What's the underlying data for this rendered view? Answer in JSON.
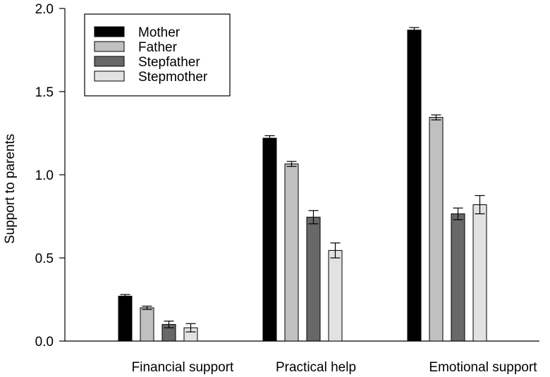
{
  "chart_data": {
    "type": "bar",
    "categories": [
      "Financial support",
      "Practical help",
      "Emotional support"
    ],
    "series": [
      {
        "name": "Mother",
        "color": "#000000",
        "values": [
          0.27,
          1.22,
          1.87
        ],
        "errors": [
          0.01,
          0.015,
          0.015
        ]
      },
      {
        "name": "Father",
        "color": "#c0c0c0",
        "values": [
          0.2,
          1.065,
          1.345
        ],
        "errors": [
          0.01,
          0.015,
          0.015
        ]
      },
      {
        "name": "Stepfather",
        "color": "#686868",
        "values": [
          0.1,
          0.745,
          0.765
        ],
        "errors": [
          0.02,
          0.04,
          0.035
        ]
      },
      {
        "name": "Stepmother",
        "color": "#e2e2e2",
        "values": [
          0.08,
          0.545,
          0.82
        ],
        "errors": [
          0.025,
          0.045,
          0.055
        ]
      }
    ],
    "ylabel": "Support to parents",
    "xlabel": "",
    "ylim": [
      0,
      2.0
    ],
    "yticks": [
      "0.0",
      "0.5",
      "1.0",
      "1.5",
      "2.0"
    ],
    "legend_position": "top-left",
    "grid": false
  }
}
